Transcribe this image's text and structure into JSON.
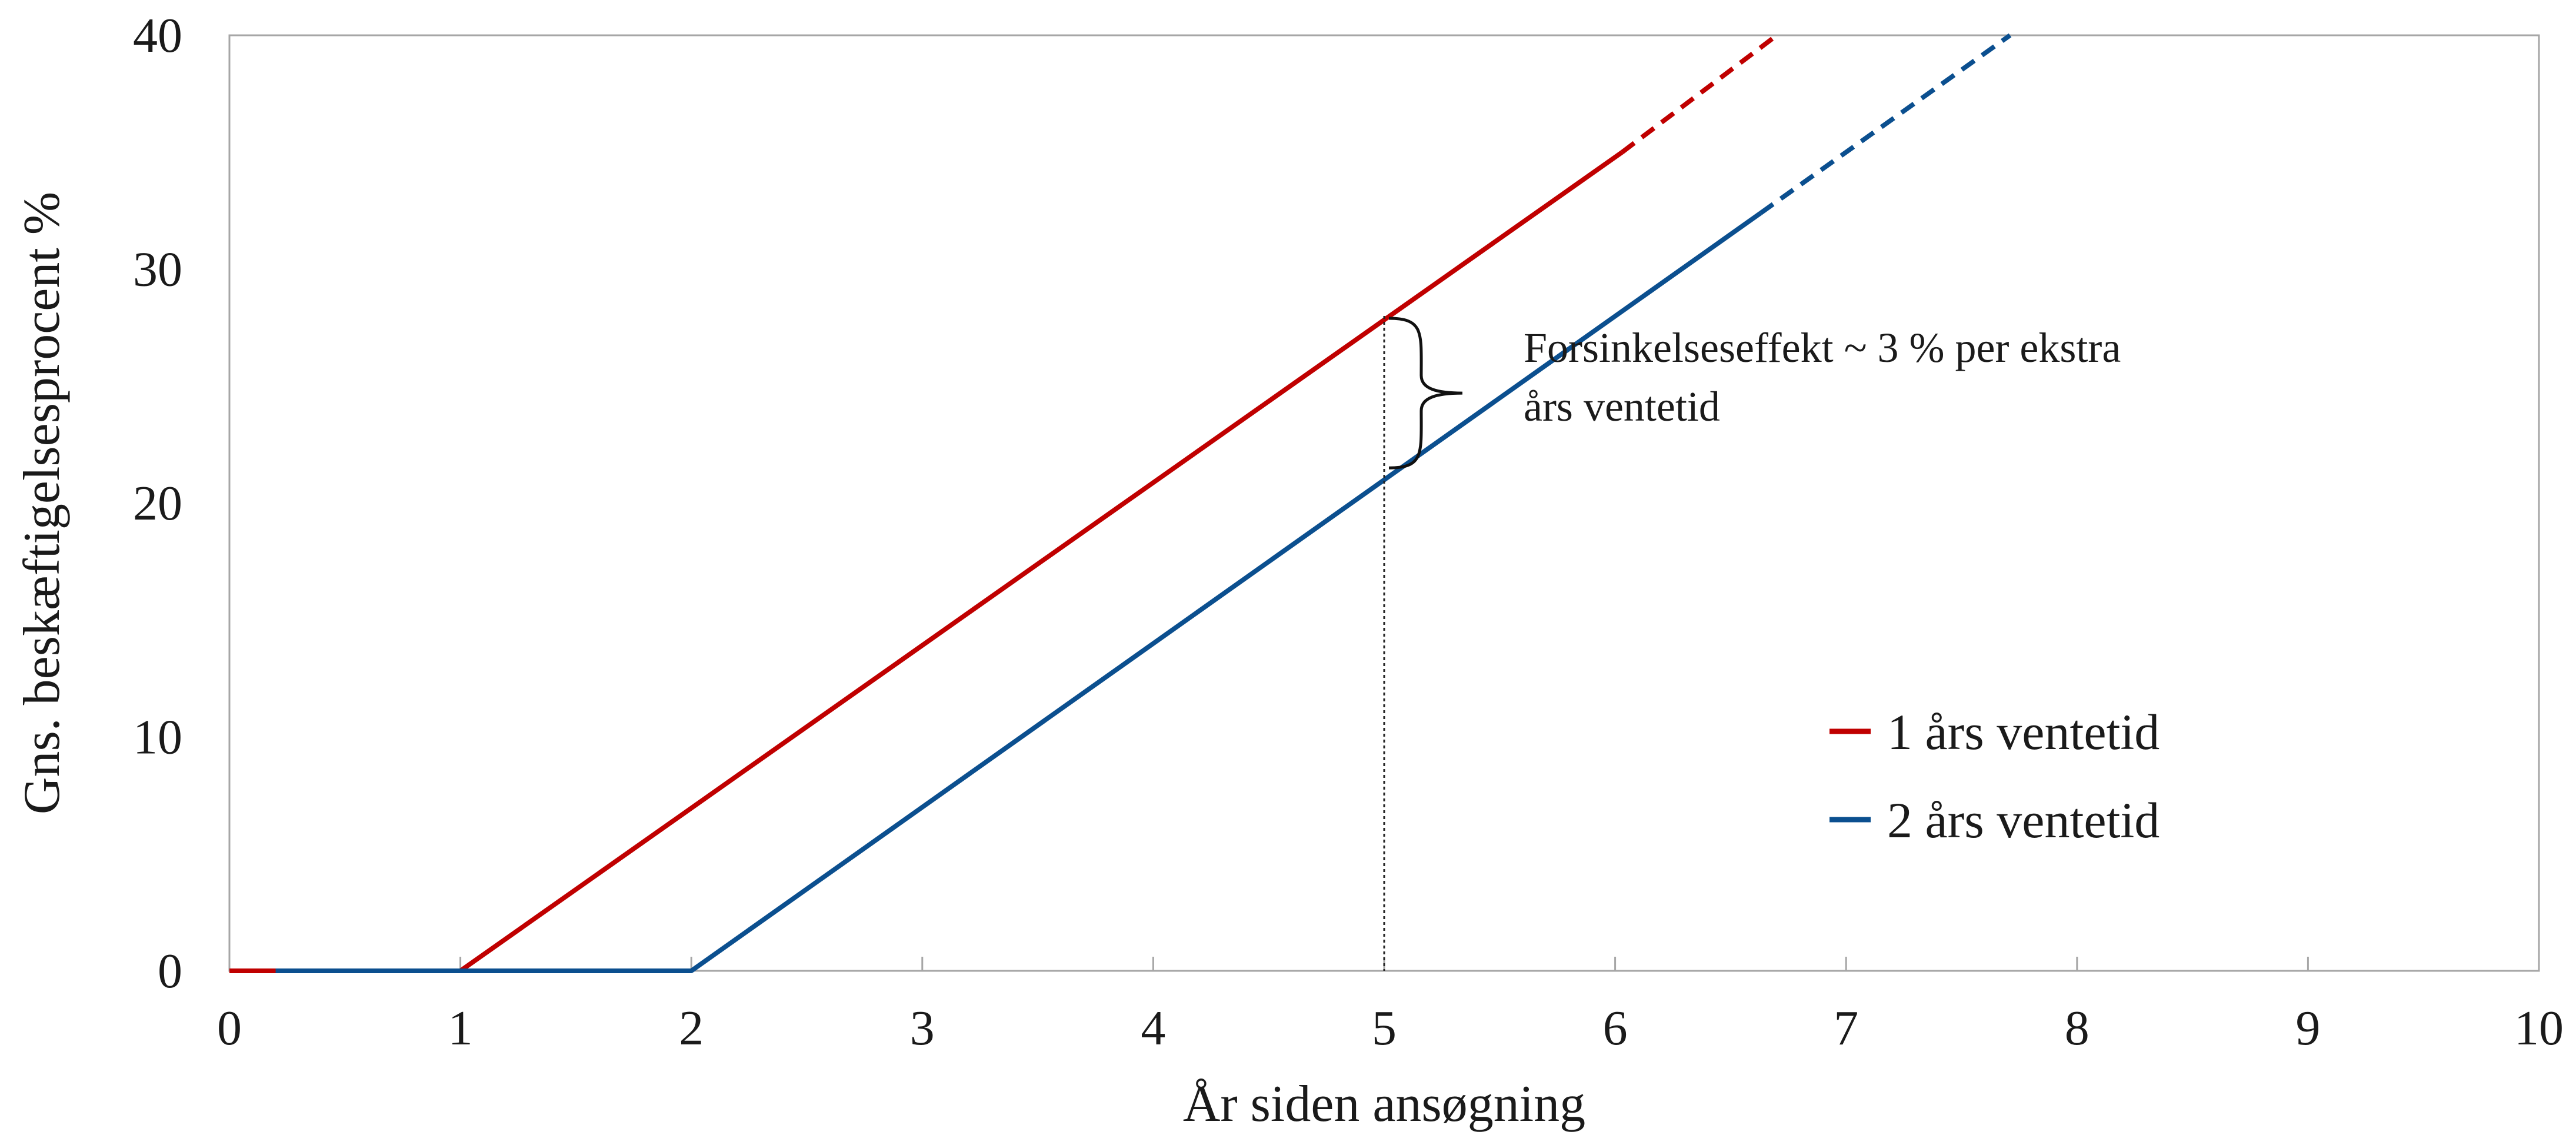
{
  "chart_data": {
    "type": "line",
    "xlabel": "År siden ansøgning",
    "ylabel": "Gns. beskæftigelsesprocent %",
    "xlim": [
      0,
      10
    ],
    "ylim": [
      0,
      40
    ],
    "xticks": [
      "0",
      "1",
      "2",
      "3",
      "4",
      "5",
      "6",
      "7",
      "8",
      "9",
      "10"
    ],
    "yticks": [
      "0",
      "10",
      "20",
      "30",
      "40"
    ],
    "grid": false,
    "legend_position": "bottom-right",
    "series": [
      {
        "name": "1 års ventetid",
        "color": "#c00000",
        "points": [
          [
            0,
            0
          ],
          [
            1,
            0
          ],
          [
            6.03,
            35
          ],
          [
            6.7,
            40
          ]
        ],
        "solid_until_x": 6.03,
        "dashed_after": true
      },
      {
        "name": "2 års ventetid",
        "color": "#0b4f8f",
        "points": [
          [
            0.2,
            0
          ],
          [
            2,
            0
          ],
          [
            6.63,
            32.4
          ],
          [
            7.71,
            40
          ]
        ],
        "solid_until_x": 6.63,
        "dashed_after": true
      }
    ],
    "annotations": [
      {
        "text_line1": "Forsinkelseseffekt ~ 3 % per ekstra",
        "text_line2": "års ventetid",
        "x": 5,
        "y_top": 28,
        "y_bottom": 21
      }
    ]
  }
}
